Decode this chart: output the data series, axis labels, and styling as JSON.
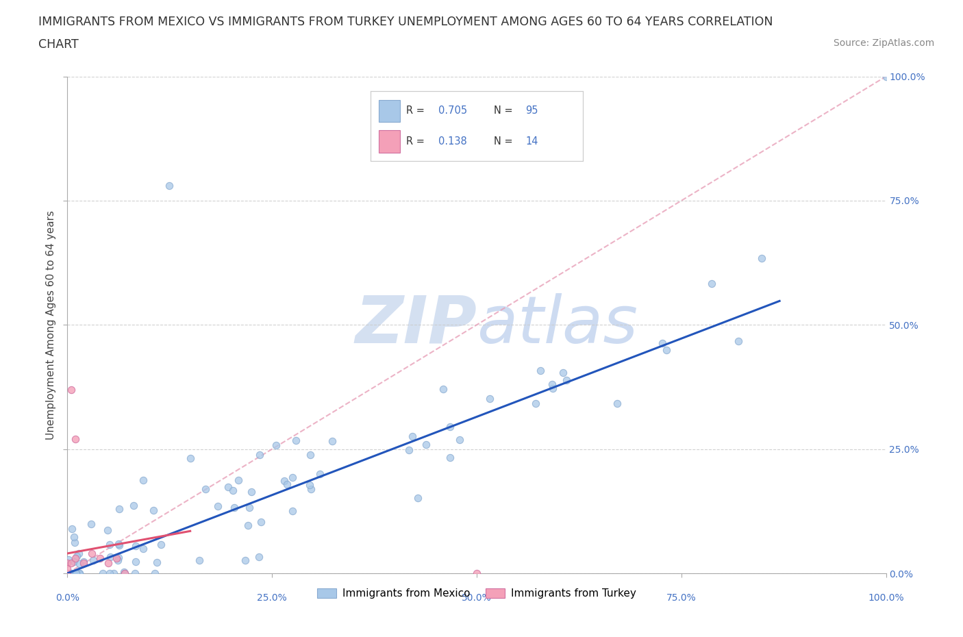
{
  "title_line1": "IMMIGRANTS FROM MEXICO VS IMMIGRANTS FROM TURKEY UNEMPLOYMENT AMONG AGES 60 TO 64 YEARS CORRELATION",
  "title_line2": "CHART",
  "source_text": "Source: ZipAtlas.com",
  "ylabel": "Unemployment Among Ages 60 to 64 years",
  "watermark": "ZIPatlas",
  "right_tick_labels": [
    "0.0%",
    "25.0%",
    "50.0%",
    "75.0%",
    "100.0%"
  ],
  "bottom_tick_labels": [
    "0.0%",
    "25.0%",
    "50.0%",
    "75.0%",
    "100.0%"
  ],
  "scatter_blue": "#a8c8e8",
  "scatter_pink": "#f4a0b8",
  "line_blue": "#2255bb",
  "line_pink": "#e05070",
  "dashed_color": "#e8a0b0",
  "grid_color": "#cccccc",
  "right_tick_color": "#4472c4",
  "bottom_tick_color": "#4472c4",
  "title_color": "#333333",
  "title_fontsize": 12.5,
  "source_fontsize": 10,
  "axis_label_fontsize": 11,
  "tick_fontsize": 10,
  "watermark_fontsize": 60,
  "watermark_color": "#d0ddf0",
  "legend_R_color": "#4472c4",
  "legend_N_color": "#e05070"
}
